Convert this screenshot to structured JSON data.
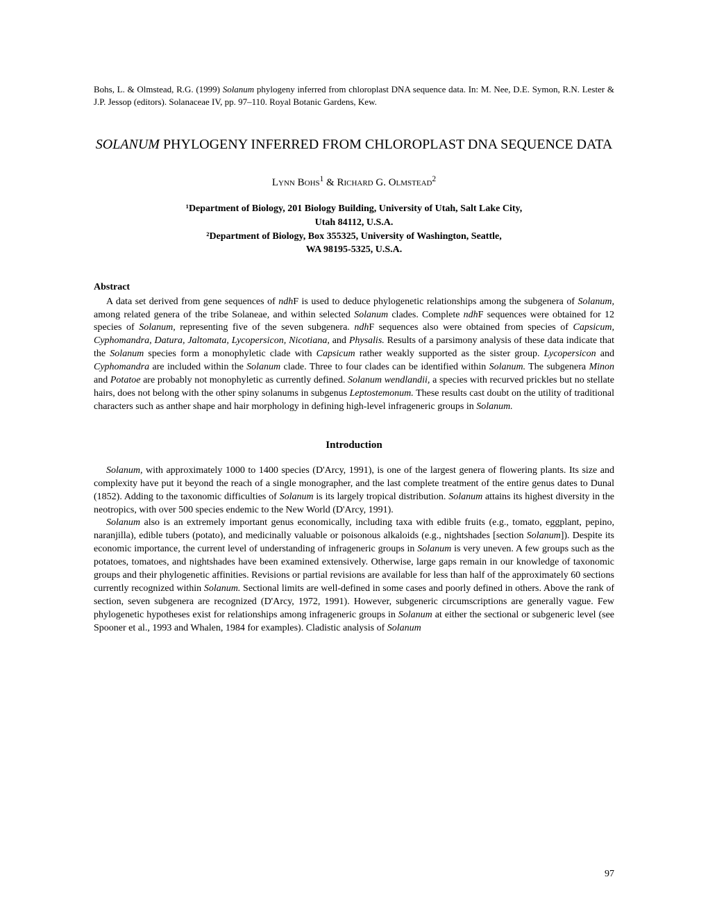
{
  "citation": {
    "text_before_italic1": "Bohs, L. & Olmstead, R.G. (1999) ",
    "italic1": "Solanum",
    "text_after_italic1": " phylogeny inferred from chloroplast DNA sequence data. In: M. Nee, D.E. Symon, R.N. Lester & J.P. Jessop (editors). Solanaceae IV, pp. 97–110. Royal Botanic Gardens, Kew."
  },
  "title": {
    "italic_part": "SOLANUM",
    "rest": " PHYLOGENY INFERRED FROM CHLOROPLAST DNA SEQUENCE DATA"
  },
  "authors": {
    "author1_first": "Lynn",
    "author1_last": "Bohs",
    "sup1": "1",
    "amp": " & ",
    "author2_first": "Richard",
    "author2_middle": " G. ",
    "author2_last": "Olmstead",
    "sup2": "2"
  },
  "affiliations": {
    "line1": "¹Department of Biology, 201 Biology Building, University of Utah, Salt Lake City,",
    "line2": "Utah 84112, U.S.A.",
    "line3": "²Department of Biology, Box 355325, University of Washington, Seattle,",
    "line4": "WA 98195-5325, U.S.A."
  },
  "abstract": {
    "heading": "Abstract",
    "p1_1": "A data set derived from gene sequences of ",
    "p1_i1": "ndh",
    "p1_2": "F is used to deduce phylogenetic relationships among the subgenera of ",
    "p1_i2": "Solanum,",
    "p1_3": " among related genera of the tribe Solaneae, and within selected ",
    "p1_i3": "Solanum",
    "p1_4": " clades. Complete ",
    "p1_i4": "ndh",
    "p1_5": "F sequences were obtained for 12 species of ",
    "p1_i5": "Solanum,",
    "p1_6": " representing five of the seven subgenera. ",
    "p1_i6": "ndh",
    "p1_7": "F sequences also were obtained from species of ",
    "p1_i7": "Capsicum, Cyphomandra, Datura, Jaltomata, Lycopersicon, Nicotiana,",
    "p1_8": " and ",
    "p1_i8": "Physalis.",
    "p1_9": " Results of a parsimony analysis of these data indicate that the ",
    "p1_i9": "Solanum",
    "p1_10": " species form a monophyletic clade with ",
    "p1_i10": "Capsicum",
    "p1_11": " rather weakly supported as the sister group. ",
    "p1_i11": "Lycopersicon",
    "p1_12": " and ",
    "p1_i12": "Cyphomandra",
    "p1_13": " are included within the ",
    "p1_i13": "Solanum",
    "p1_14": " clade. Three to four clades can be identified within ",
    "p1_i14": "Solanum.",
    "p1_15": " The subgenera ",
    "p1_i15": "Minon",
    "p1_16": " and ",
    "p1_i16": "Potatoe",
    "p1_17": " are probably not monophyletic as currently defined. ",
    "p1_i17": "Solanum wendlandii,",
    "p1_18": " a species with recurved prickles but no stellate hairs, does not belong with the other spiny solanums in subgenus ",
    "p1_i18": "Leptostemonum.",
    "p1_19": " These results cast doubt on the utility of traditional characters such as anther shape and hair morphology in defining high-level infrageneric groups in ",
    "p1_i19": "Solanum."
  },
  "introduction": {
    "heading": "Introduction",
    "p1_i1": "Solanum,",
    "p1_1": " with approximately 1000 to 1400 species (D'Arcy, 1991), is one of the largest genera of flowering plants. Its size and complexity have put it beyond the reach of a single monographer, and the last complete treatment of the entire genus dates to Dunal (1852). Adding to the taxonomic difficulties of ",
    "p1_i2": "Solanum",
    "p1_2": " is its largely tropical distribution. ",
    "p1_i3": "Solanum",
    "p1_3": " attains its highest diversity in the neotropics, with over 500 species endemic to the New World (D'Arcy, 1991).",
    "p2_i1": "Solanum",
    "p2_1": " also is an extremely important genus economically, including taxa with edible fruits (e.g., tomato, eggplant, pepino, naranjilla), edible tubers (potato), and medicinally valuable or poisonous alkaloids (e.g., nightshades [section ",
    "p2_i2": "Solanum",
    "p2_2": "]). Despite its economic importance, the current level of understanding of infrageneric groups in ",
    "p2_i3": "Solanum",
    "p2_3": " is very uneven. A few groups such as the potatoes, tomatoes, and nightshades have been examined extensively. Otherwise, large gaps remain in our knowledge of taxonomic groups and their phylogenetic affinities. Revisions or partial revisions are available for less than half of the approximately 60 sections currently recognized within ",
    "p2_i4": "Solanum.",
    "p2_4": " Sectional limits are well-defined in some cases and poorly defined in others. Above the rank of section, seven subgenera are recognized (D'Arcy, 1972, 1991). However, subgeneric circumscriptions are generally vague. Few phylogenetic hypotheses exist for relationships among infrageneric groups in ",
    "p2_i5": "Solanum",
    "p2_5": " at either the sectional or subgeneric level (see Spooner et al., 1993 and Whalen, 1984 for examples). Cladistic analysis of ",
    "p2_i6": "Solanum"
  },
  "page_number": "97"
}
